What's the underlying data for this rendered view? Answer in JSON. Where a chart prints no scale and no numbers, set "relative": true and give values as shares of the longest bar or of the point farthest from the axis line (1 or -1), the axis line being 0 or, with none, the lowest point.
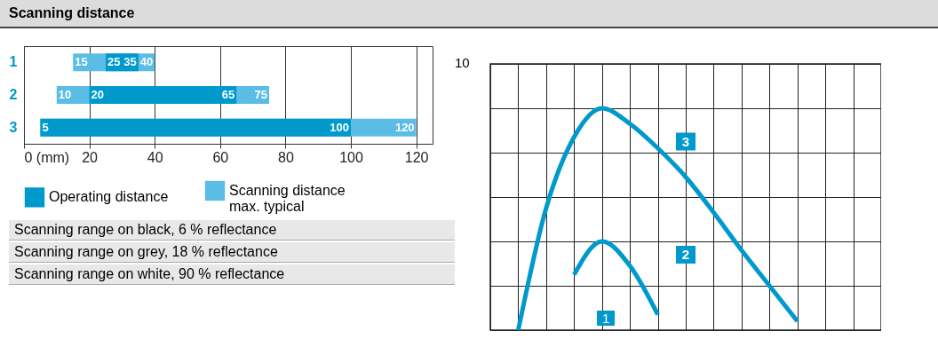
{
  "chart_data": [
    {
      "type": "bar",
      "title": "Scanning distance",
      "orientation": "horizontal",
      "categories": [
        "1",
        "2",
        "3"
      ],
      "series": [
        {
          "name": "Scanning distance max. typical",
          "color": "#5bbde6",
          "base": [
            15,
            10,
            5
          ],
          "values": [
            25,
            65,
            115
          ]
        },
        {
          "name": "Operating distance",
          "color": "#0099cc",
          "base": [
            25,
            20,
            5
          ],
          "values": [
            10,
            45,
            95
          ]
        }
      ],
      "xlim": [
        0,
        125
      ],
      "xticks": [
        {
          "value": 0,
          "label": "0 (mm)"
        },
        20,
        40,
        60,
        80,
        100,
        120
      ],
      "grid": "x",
      "legend": "bottom",
      "annotations": [
        {
          "text": "15",
          "x": 15,
          "y": "1"
        },
        {
          "text": "25",
          "x": 25,
          "y": "1"
        },
        {
          "text": "35",
          "x": 35,
          "y": "1"
        },
        {
          "text": "40",
          "x": 40,
          "y": "1"
        },
        {
          "text": "10",
          "x": 10,
          "y": "2"
        },
        {
          "text": "20",
          "x": 20,
          "y": "2"
        },
        {
          "text": "65",
          "x": 65,
          "y": "2"
        },
        {
          "text": "75",
          "x": 75,
          "y": "2"
        },
        {
          "text": "5",
          "x": 5,
          "y": "3"
        },
        {
          "text": "100",
          "x": 100,
          "y": "3"
        },
        {
          "text": "120",
          "x": 120,
          "y": "3"
        },
        "Scanning range on black, 6 % reflectance",
        "Scanning range on grey, 18 % reflectance",
        "Scanning range on white, 90 % reflectance"
      ]
    },
    {
      "type": "line",
      "relative": true,
      "categories": [
        null,
        null,
        null,
        null,
        null,
        null,
        null,
        null,
        null,
        null,
        null,
        null,
        null,
        null,
        null
      ],
      "series": [
        {
          "name": "3",
          "color": "#0099cc",
          "values": [
            null,
            0.0,
            0.55,
            0.87,
            1,
            0.93,
            0.82,
            0.69,
            0.53,
            0.36,
            0.2,
            0.04,
            null,
            null,
            null
          ]
        },
        {
          "name": "2",
          "color": "#0099cc",
          "values": [
            null,
            null,
            null,
            0.25,
            0.4,
            0.29,
            0.07,
            null,
            null,
            null,
            null,
            null,
            null,
            null,
            null
          ]
        }
      ],
      "grid": true,
      "tick_labels": false,
      "legend": false,
      "annotations": [
        "10",
        "1"
      ]
    }
  ]
}
